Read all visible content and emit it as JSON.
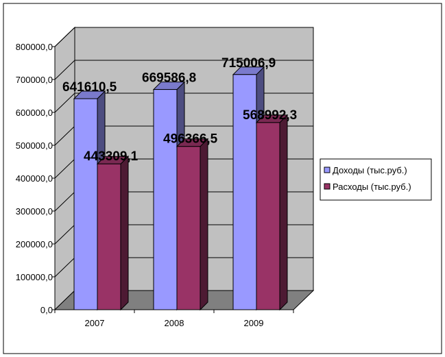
{
  "chart_data": {
    "type": "bar",
    "title": "",
    "xlabel": "",
    "ylabel": "",
    "categories": [
      "2007",
      "2008",
      "2009"
    ],
    "series": [
      {
        "name": "Доходы (тыс.руб.)",
        "values": [
          641610.5,
          669586.8,
          715006.9
        ],
        "labels": [
          "641610,5",
          "669586,8",
          "715006,9"
        ],
        "color": "#9999ff",
        "side_color": "#4d4d80",
        "top_color": "#7a7acc"
      },
      {
        "name": "Расходы (тыс.руб.)",
        "values": [
          443309.1,
          496366.5,
          568992.3
        ],
        "labels": [
          "443309,1",
          "496366,5",
          "568992,3"
        ],
        "color": "#993366",
        "side_color": "#4d1a33",
        "top_color": "#7a2952"
      }
    ],
    "ylim": [
      0,
      800000
    ],
    "yticks": [
      "0,0",
      "100000,0",
      "200000,0",
      "300000,0",
      "400000,0",
      "500000,0",
      "600000,0",
      "700000,0",
      "800000,0"
    ],
    "grid": true,
    "wall_color": "#c0c0c0",
    "floor_color": "#808080",
    "legend": "right",
    "three_d": true
  }
}
